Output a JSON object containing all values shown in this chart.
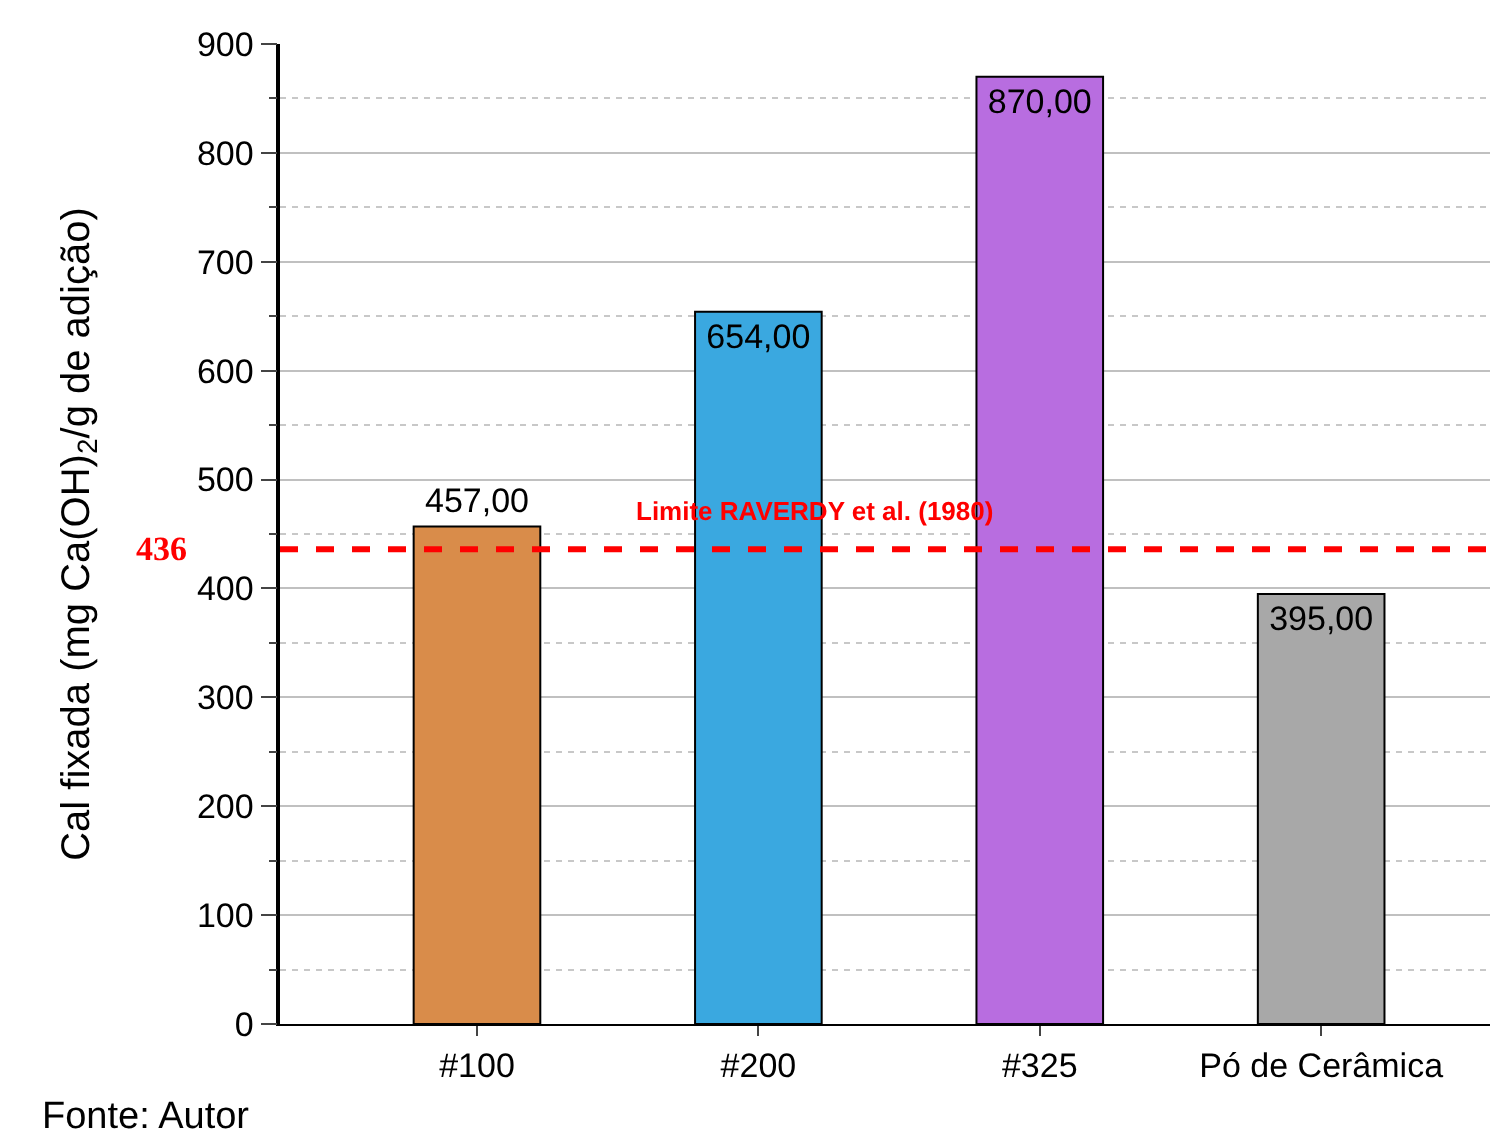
{
  "chart_data": {
    "type": "bar",
    "ylabel": "Cal fixada (mg Ca(OH)$_{2}$/g de adição)",
    "categories": [
      "#100",
      "#200",
      "#325",
      "Pó de Cerâmica"
    ],
    "values": [
      457,
      654,
      870,
      395
    ],
    "value_labels": [
      "457,00",
      "654,00",
      "870,00",
      "395,00"
    ],
    "colors": [
      "#d98c4a",
      "#3aa8e0",
      "#b86de0",
      "#a8a8a8"
    ],
    "ylim": [
      0,
      900
    ],
    "yticks": [
      0,
      100,
      200,
      300,
      400,
      500,
      600,
      700,
      800,
      900
    ],
    "grid": "y",
    "ref_lines": [
      {
        "axis": "y",
        "value": 436,
        "label": "Limite RAVERDY et al. (1980)",
        "color": "#ff0000",
        "line_style": "dashed"
      }
    ],
    "annotations": [
      "436",
      "Fonte: Autor"
    ]
  }
}
